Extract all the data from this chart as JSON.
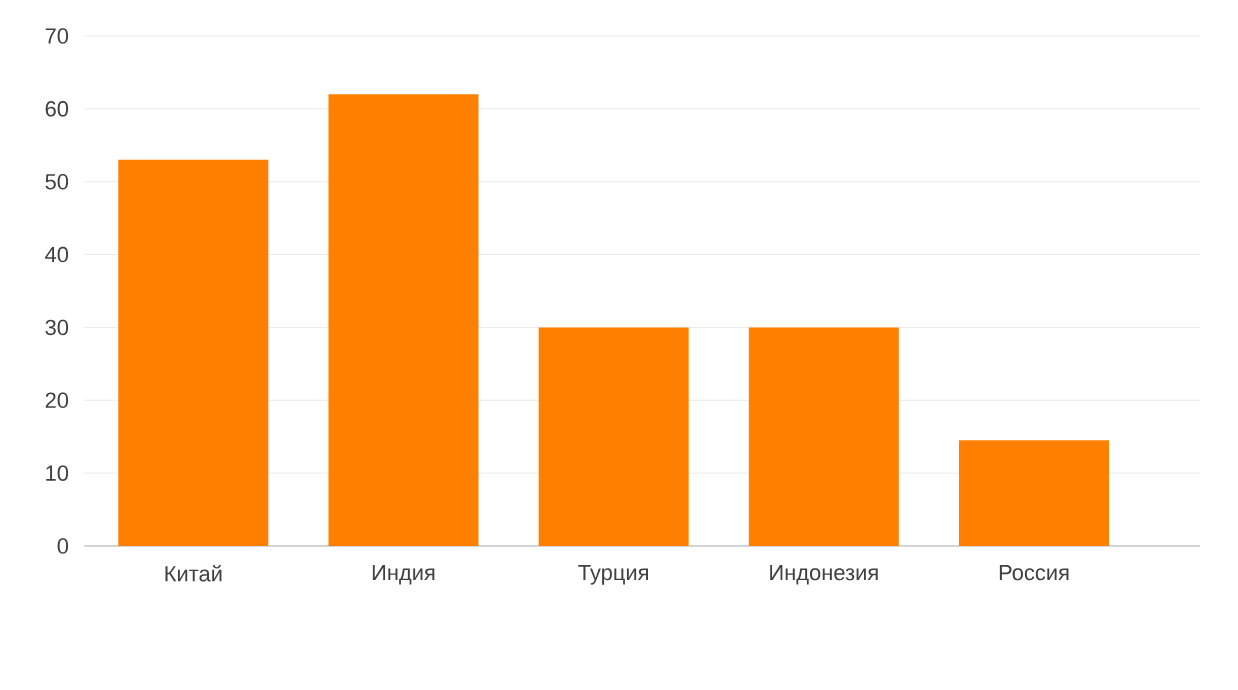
{
  "chart_data": {
    "type": "bar",
    "categories": [
      "Китай",
      "Индия",
      "Турция",
      "Индонезия",
      "Россия"
    ],
    "values": [
      53,
      62,
      30,
      30,
      14.5
    ],
    "color": "#ff7f00",
    "ylim": [
      0,
      70
    ],
    "yticks": [
      0,
      10,
      20,
      30,
      40,
      50,
      60,
      70
    ],
    "grid": "y"
  }
}
